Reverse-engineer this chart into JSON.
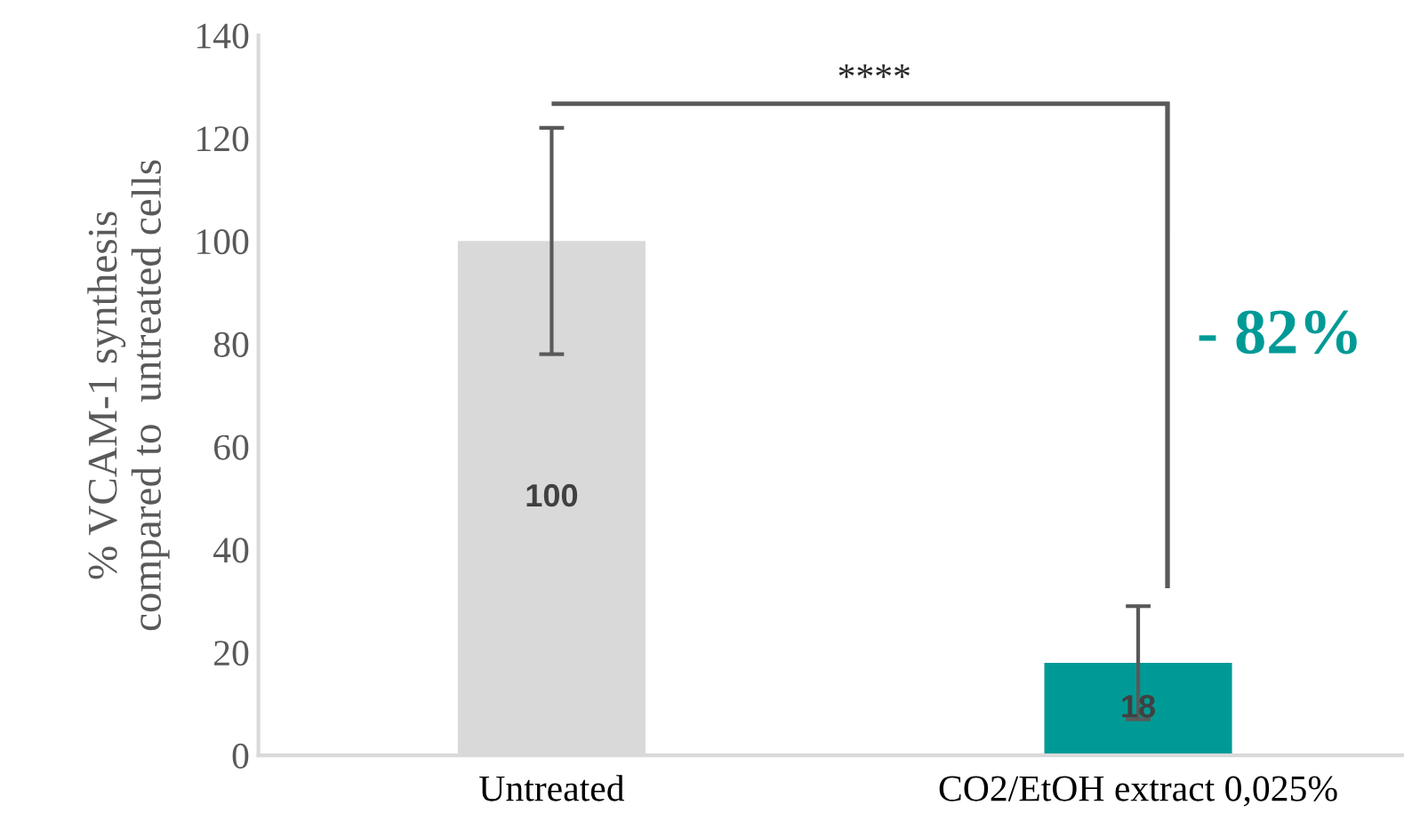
{
  "chart_data": {
    "type": "bar",
    "ylabel": "% VCAM-1 synthesis\ncompared to  untreated cells",
    "categories": [
      "Untreated",
      "CO2/EtOH extract 0,025%"
    ],
    "values": [
      100,
      18
    ],
    "colors": [
      "#d9d9d9",
      "#009a96"
    ],
    "errors": [
      22,
      11
    ],
    "ylim": [
      0,
      140
    ],
    "yticks": [
      0,
      20,
      40,
      60,
      80,
      100,
      120,
      140
    ],
    "data_labels": true,
    "grid": false,
    "annotations": [
      "****",
      "- 82%"
    ]
  }
}
